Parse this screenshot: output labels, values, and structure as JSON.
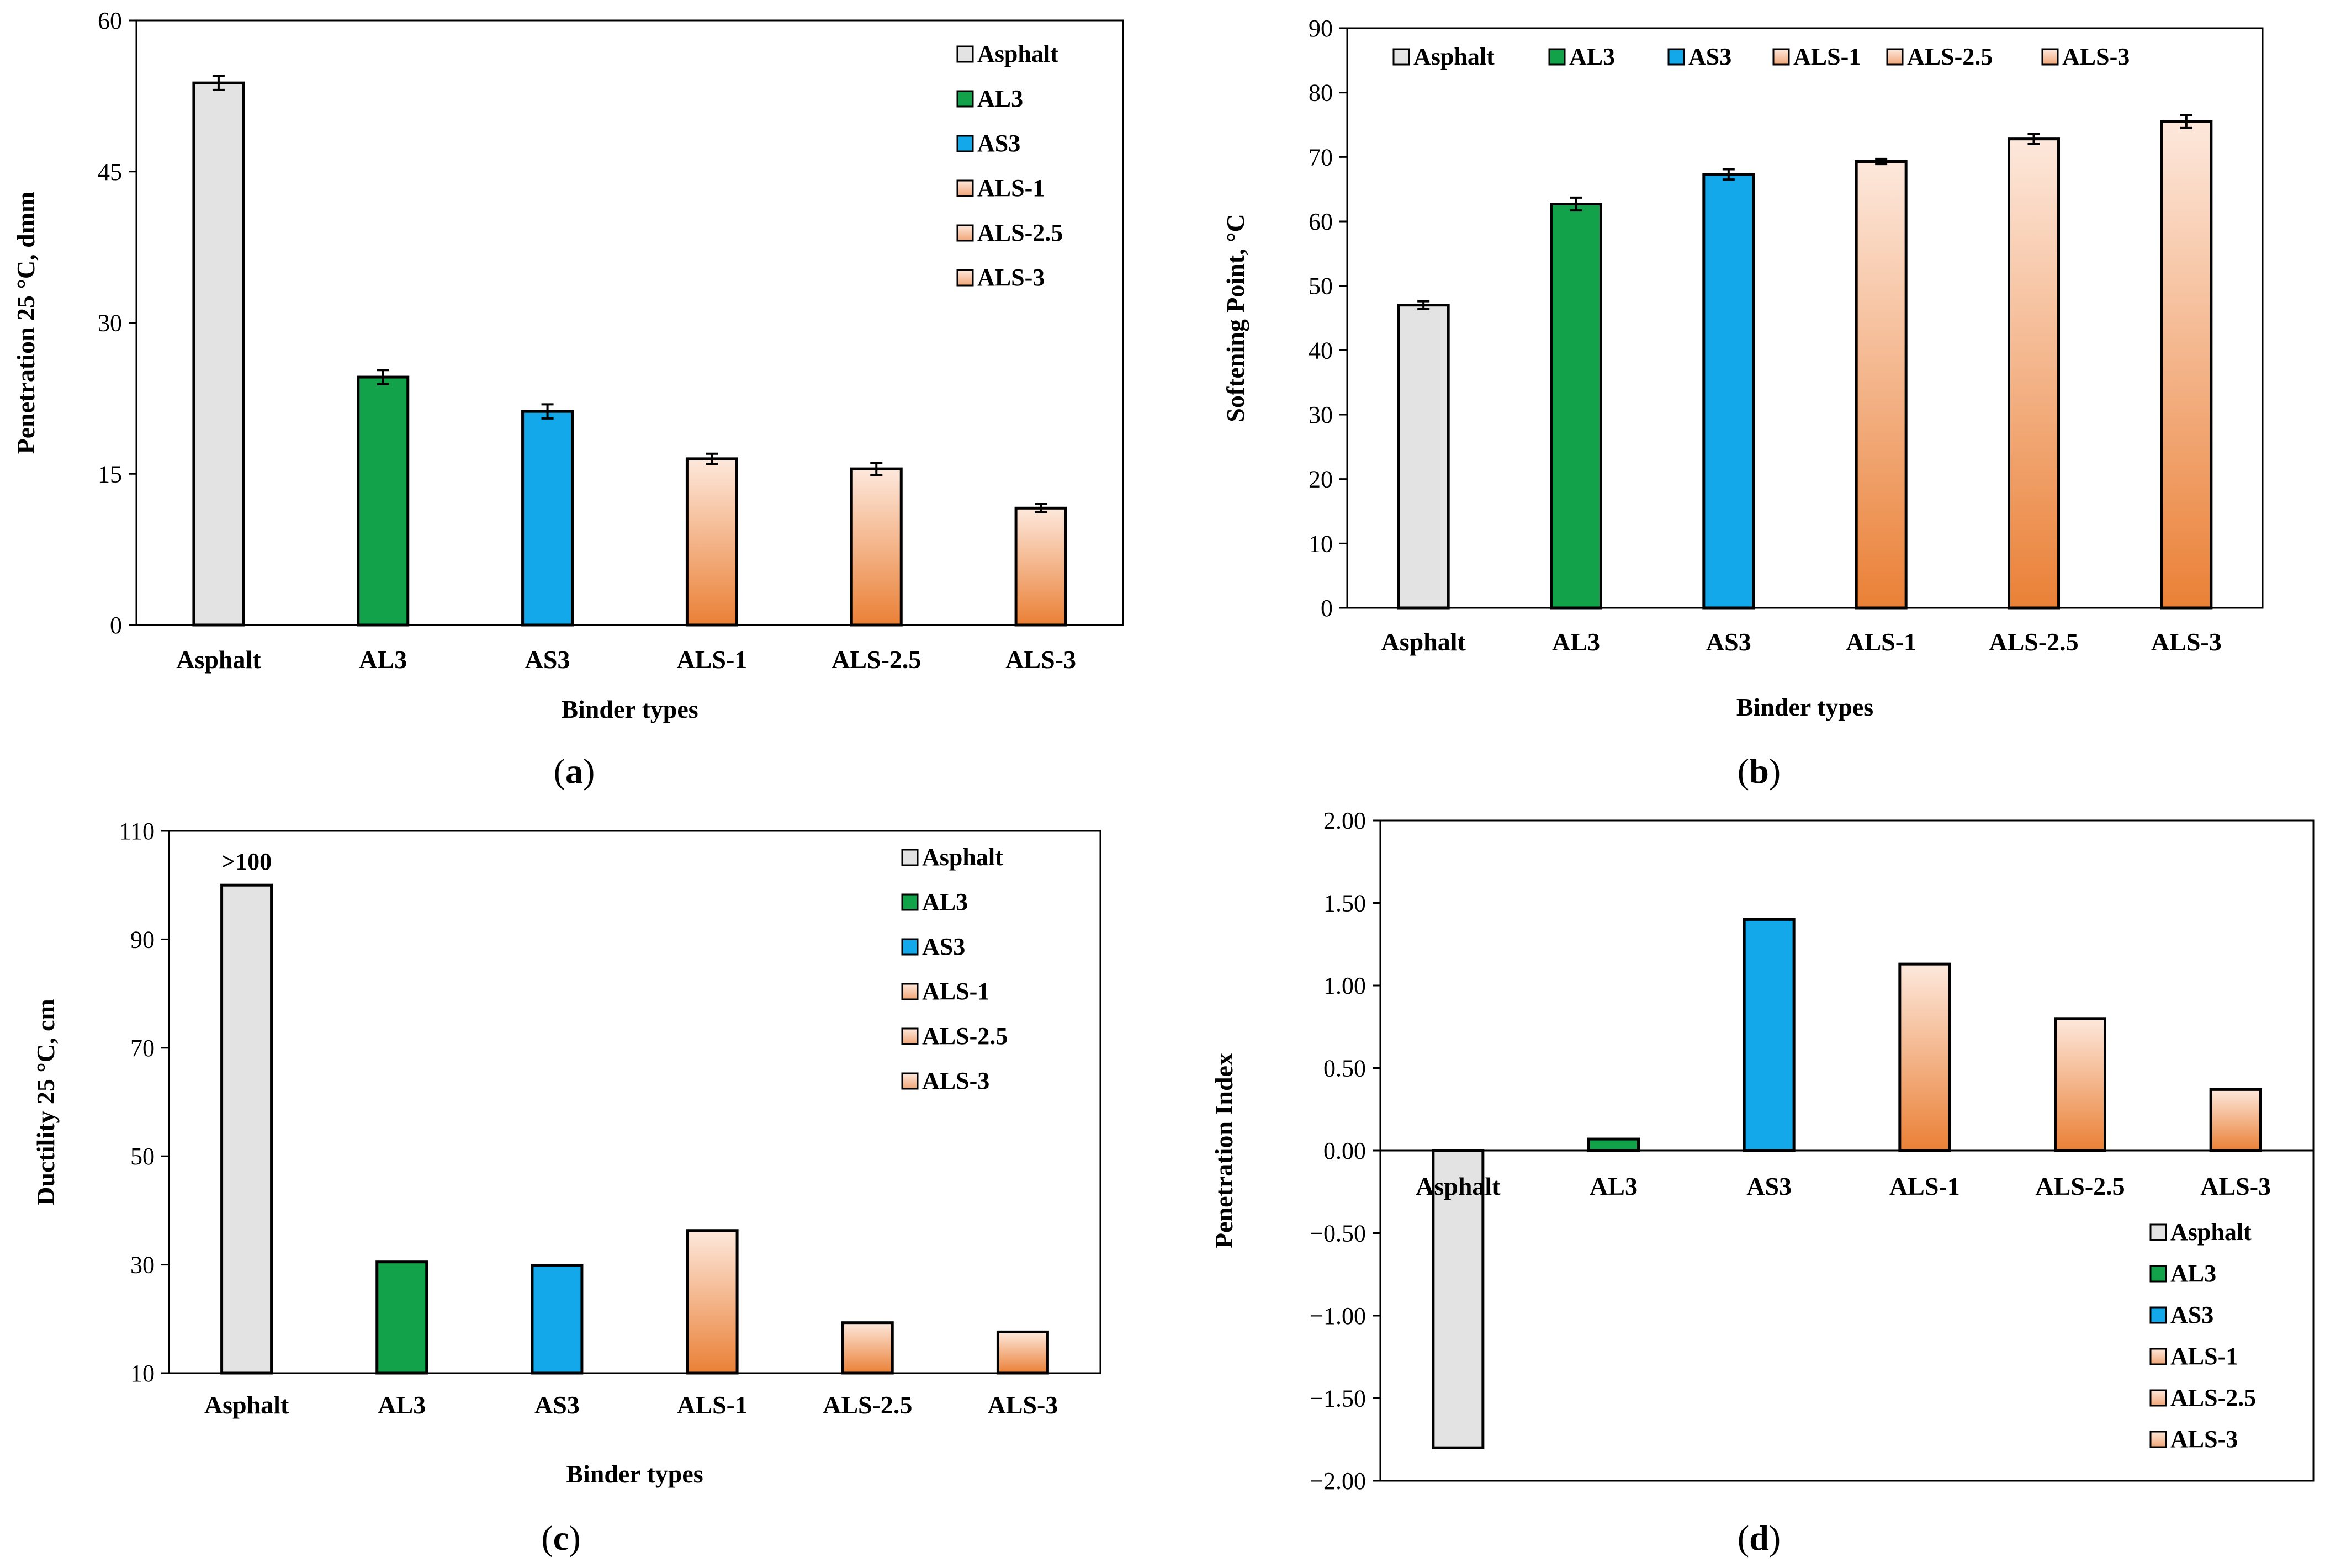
{
  "colors": {
    "Asphalt": "#e4e3e4",
    "AL3": "#12a24a",
    "AS3": "#13a8ea",
    "orange_top": "#fde8dc",
    "orange_bottom": "#ea8036"
  },
  "chart_data": [
    {
      "panel": "a",
      "type": "bar",
      "categories": [
        "Asphalt",
        "AL3",
        "AS3",
        "ALS-1",
        "ALS-2.5",
        "ALS-3"
      ],
      "series": [
        {
          "values": [
            53.8,
            24.6,
            21.2,
            16.5,
            15.5,
            11.6
          ],
          "errors": [
            0.7,
            0.7,
            0.7,
            0.5,
            0.6,
            0.4
          ]
        }
      ],
      "xlabel": "Binder types",
      "ylabel": "Penetration 25 °C, dmm",
      "ylim": [
        0,
        60
      ],
      "yticks": [
        "0",
        "15",
        "30",
        "45",
        "60"
      ],
      "legend": [
        "Asphalt",
        "AL3",
        "AS3",
        "ALS-1",
        "ALS-2.5",
        "ALS-3"
      ],
      "legend_position": "top-right",
      "legend_layout": "vertical",
      "panel_label": "a"
    },
    {
      "panel": "b",
      "type": "bar",
      "categories": [
        "Asphalt",
        "AL3",
        "AS3",
        "ALS-1",
        "ALS-2.5",
        "ALS-3"
      ],
      "series": [
        {
          "values": [
            47.0,
            62.7,
            67.3,
            69.3,
            72.8,
            75.5
          ],
          "errors": [
            0.6,
            1.0,
            0.8,
            0.4,
            0.8,
            1.0
          ]
        }
      ],
      "xlabel": "Binder types",
      "ylabel": "Softening Point, °C",
      "ylim": [
        0,
        90
      ],
      "yticks": [
        "0",
        "10",
        "20",
        "30",
        "40",
        "50",
        "60",
        "70",
        "80",
        "90"
      ],
      "legend": [
        "Asphalt",
        "AL3",
        "AS3",
        "ALS-1",
        "ALS-2.5",
        "ALS-3"
      ],
      "legend_position": "top",
      "legend_layout": "horizontal",
      "panel_label": "b"
    },
    {
      "panel": "c",
      "type": "bar",
      "categories": [
        "Asphalt",
        "AL3",
        "AS3",
        "ALS-1",
        "ALS-2.5",
        "ALS-3"
      ],
      "series": [
        {
          "values": [
            100,
            30.5,
            29.9,
            36.3,
            19.3,
            17.6
          ]
        }
      ],
      "xlabel": "Binder types",
      "ylabel": "Ductility  25 °C, cm",
      "ylim": [
        10,
        110
      ],
      "yticks": [
        "10",
        "30",
        "50",
        "70",
        "90",
        "110"
      ],
      "annotations": [
        {
          "category": "Asphalt",
          "text": ">100"
        }
      ],
      "legend": [
        "Asphalt",
        "AL3",
        "AS3",
        "ALS-1",
        "ALS-2.5",
        "ALS-3"
      ],
      "legend_position": "top-right",
      "legend_layout": "vertical",
      "panel_label": "c"
    },
    {
      "panel": "d",
      "type": "bar",
      "categories": [
        "Asphalt",
        "AL3",
        "AS3",
        "ALS-1",
        "ALS-2.5",
        "ALS-3"
      ],
      "series": [
        {
          "values": [
            -1.8,
            0.07,
            1.4,
            1.13,
            0.8,
            0.37
          ]
        }
      ],
      "xlabel": "",
      "ylabel": "Penetration Index",
      "ylim": [
        -2.0,
        2.0
      ],
      "yticks": [
        "−2.00",
        "−1.50",
        "−1.00",
        "−0.50",
        "0.00",
        "0.50",
        "1.00",
        "1.50",
        "2.00"
      ],
      "legend": [
        "Asphalt",
        "AL3",
        "AS3",
        "ALS-1",
        "ALS-2.5",
        "ALS-3"
      ],
      "legend_position": "bottom-right",
      "legend_layout": "vertical",
      "panel_label": "d"
    }
  ]
}
